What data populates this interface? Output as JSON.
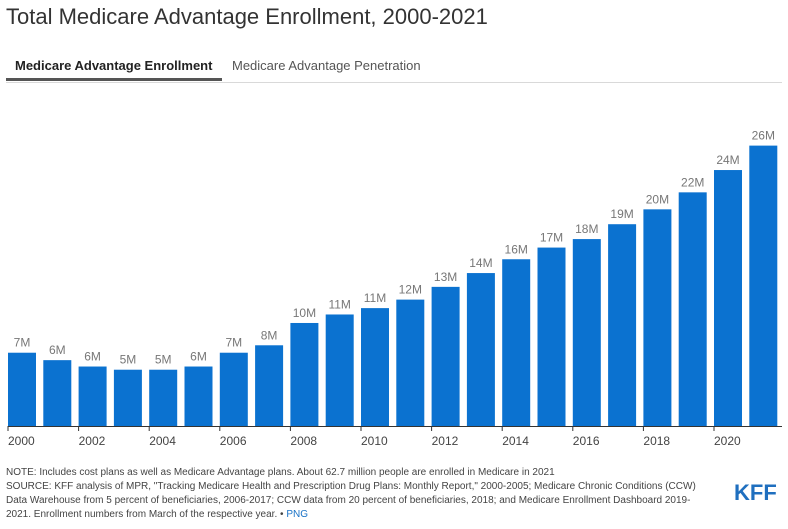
{
  "title": "Total Medicare Advantage Enrollment, 2000-2021",
  "tabs": [
    {
      "label": "Medicare Advantage Enrollment",
      "active": true
    },
    {
      "label": "Medicare Advantage Penetration",
      "active": false
    }
  ],
  "colors": {
    "bar": "#0b72d0",
    "axis": "#333333",
    "label": "#777777"
  },
  "chart_data": {
    "type": "bar",
    "categories": [
      "2000",
      "2001",
      "2002",
      "2003",
      "2004",
      "2005",
      "2006",
      "2007",
      "2008",
      "2009",
      "2010",
      "2011",
      "2012",
      "2013",
      "2014",
      "2015",
      "2016",
      "2017",
      "2018",
      "2019",
      "2020",
      "2021"
    ],
    "values": [
      6.9,
      6.2,
      5.6,
      5.3,
      5.3,
      5.6,
      6.9,
      7.6,
      9.7,
      10.5,
      11.1,
      11.9,
      13.1,
      14.4,
      15.7,
      16.8,
      17.6,
      19.0,
      20.4,
      22.0,
      24.1,
      26.4
    ],
    "data_labels": [
      "7M",
      "6M",
      "6M",
      "5M",
      "5M",
      "6M",
      "7M",
      "8M",
      "10M",
      "11M",
      "11M",
      "12M",
      "13M",
      "14M",
      "16M",
      "17M",
      "18M",
      "19M",
      "20M",
      "22M",
      "24M",
      "26M"
    ],
    "x_tick_labels": [
      "2000",
      "2002",
      "2004",
      "2006",
      "2008",
      "2010",
      "2012",
      "2014",
      "2016",
      "2018",
      "2020"
    ],
    "ylim": [
      0,
      29
    ],
    "grid": false,
    "xlabel": "",
    "ylabel": ""
  },
  "footer": {
    "note": "NOTE: Includes cost plans as well as Medicare Advantage plans. About 62.7 million people are enrolled in Medicare in 2021",
    "source": "SOURCE: KFF analysis of MPR, \"Tracking Medicare Health and Prescription Drug Plans: Monthly Report,\" 2000-2005; Medicare Chronic Conditions (CCW) Data Warehouse from 5 percent of beneficiaries, 2006-2017; CCW data from 20 percent of beneficiaries, 2018; and Medicare Enrollment Dashboard 2019-2021. Enrollment numbers from March of the respective year.",
    "separator": " • ",
    "png_label": "PNG"
  },
  "logo": "KFF"
}
